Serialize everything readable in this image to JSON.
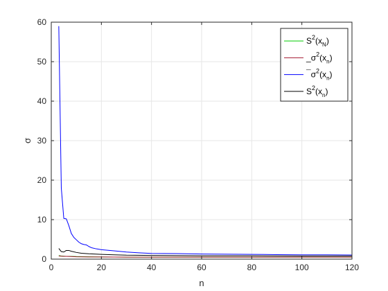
{
  "chart_data": {
    "type": "line",
    "title": "",
    "xlabel": "n",
    "ylabel": "σ",
    "xlim": [
      0,
      120
    ],
    "ylim": [
      0,
      60
    ],
    "xticks": [
      0,
      20,
      40,
      60,
      80,
      100,
      120
    ],
    "yticks": [
      0,
      10,
      20,
      30,
      40,
      50,
      60
    ],
    "grid": true,
    "legend_position": "top-right",
    "series": [
      {
        "name": "S²(x_N)",
        "legend": {
          "pre": "",
          "base": "S",
          "sup": "2",
          "open": "(x",
          "sub": "N",
          "close": ")"
        },
        "color": "#00cc00",
        "x": [
          3,
          4,
          5,
          6,
          8,
          10,
          15,
          20,
          30,
          40,
          60,
          80,
          100,
          120
        ],
        "y": [
          0.9,
          0.8,
          0.75,
          0.7,
          0.7,
          0.65,
          0.6,
          0.55,
          0.5,
          0.5,
          0.5,
          0.5,
          0.5,
          0.5
        ]
      },
      {
        "name": "σ²(x_n)",
        "legend": {
          "pre": "_",
          "base": "σ",
          "sup": "2",
          "open": "(x",
          "sub": "n",
          "close": ")"
        },
        "color": "#a2142f",
        "x": [
          3,
          4,
          5,
          6,
          8,
          10,
          15,
          20,
          30,
          40,
          60,
          80,
          100,
          120
        ],
        "y": [
          0.8,
          0.75,
          0.7,
          0.7,
          0.65,
          0.6,
          0.55,
          0.55,
          0.5,
          0.5,
          0.5,
          0.5,
          0.5,
          0.5
        ]
      },
      {
        "name": "σ²(x_n)",
        "legend": {
          "pre": "¯",
          "base": "σ",
          "sup": "2",
          "open": "(x",
          "sub": "n",
          "close": ")"
        },
        "color": "#0000ff",
        "x": [
          3,
          4,
          5,
          6,
          7,
          8,
          9,
          10,
          11,
          12,
          13,
          14,
          15,
          16,
          18,
          20,
          25,
          30,
          35,
          40,
          50,
          60,
          70,
          80,
          90,
          100,
          110,
          120
        ],
        "y": [
          59,
          18,
          10.3,
          10.2,
          8.5,
          6.5,
          5.5,
          4.9,
          4.3,
          3.9,
          3.7,
          3.6,
          3.2,
          2.9,
          2.6,
          2.4,
          2.1,
          1.8,
          1.6,
          1.45,
          1.4,
          1.3,
          1.25,
          1.2,
          1.15,
          1.1,
          1.1,
          1.05
        ]
      },
      {
        "name": "S²(x_n)",
        "legend": {
          "pre": "",
          "base": "S",
          "sup": "2",
          "open": "(x",
          "sub": "n",
          "close": ")"
        },
        "color": "#000000",
        "x": [
          3,
          4,
          5,
          6,
          7,
          8,
          10,
          12,
          15,
          20,
          25,
          30,
          40,
          50,
          60,
          80,
          100,
          120
        ],
        "y": [
          2.7,
          1.9,
          1.8,
          2.2,
          2.2,
          2.0,
          1.7,
          1.5,
          1.35,
          1.2,
          1.1,
          1.0,
          0.95,
          0.9,
          0.85,
          0.85,
          0.8,
          0.8
        ]
      }
    ]
  }
}
